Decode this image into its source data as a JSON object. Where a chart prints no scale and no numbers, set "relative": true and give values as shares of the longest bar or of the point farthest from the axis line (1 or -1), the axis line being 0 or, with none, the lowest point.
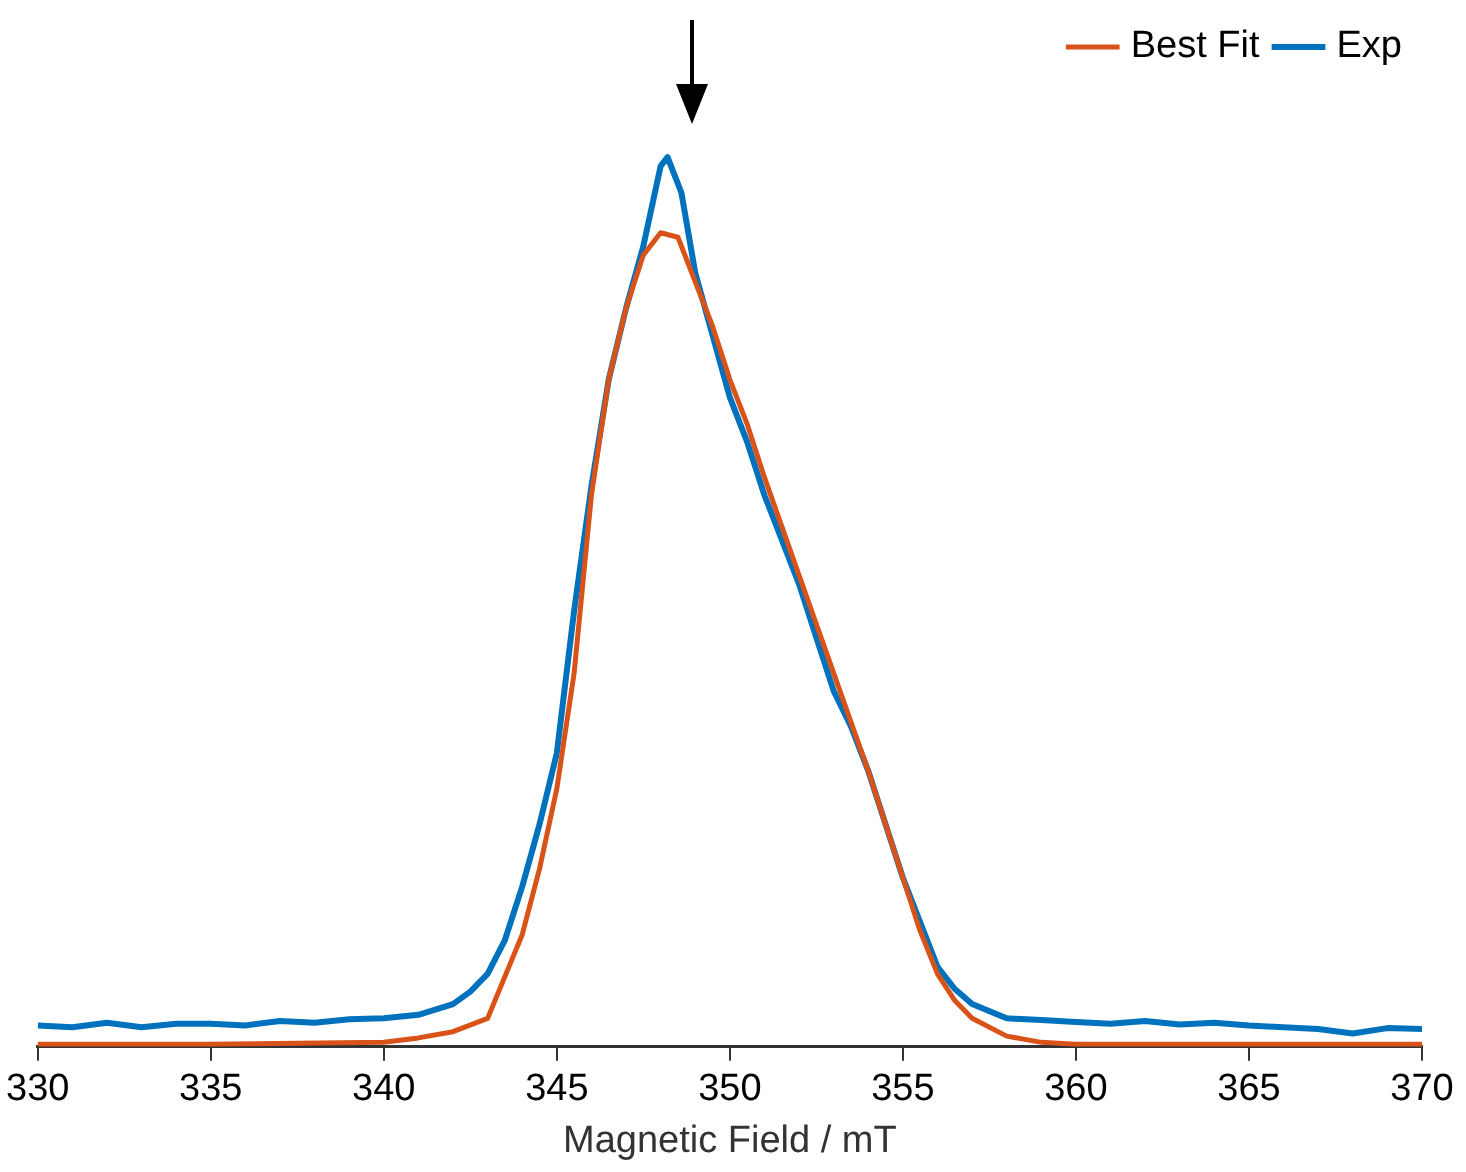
{
  "chart_data": {
    "type": "line",
    "xlabel": "Magnetic Field / mT",
    "relative": true,
    "xlim": [
      330,
      370
    ],
    "xticks": [
      330,
      335,
      340,
      345,
      350,
      355,
      360,
      365,
      370
    ],
    "grid": false,
    "legend": "top right",
    "marker": "none",
    "line_style": "solid",
    "series": [
      {
        "name": "Exp",
        "color": "#0072bd",
        "x": [
          330,
          331,
          332,
          333,
          334,
          335,
          336,
          337,
          338,
          339,
          340,
          341,
          342,
          342.5,
          343,
          343.5,
          344,
          344.5,
          345,
          345.5,
          346,
          346.5,
          347,
          347.5,
          348,
          348.2,
          348.6,
          349,
          349.5,
          350,
          350.5,
          351,
          351.5,
          352,
          352.5,
          353,
          353.5,
          354,
          354.5,
          355,
          355.5,
          356,
          356.5,
          357,
          358,
          359,
          360,
          361,
          362,
          363,
          364,
          365,
          366,
          367,
          368,
          369,
          370
        ],
        "values": [
          0.024,
          0.022,
          0.027,
          0.022,
          0.026,
          0.026,
          0.024,
          0.029,
          0.027,
          0.031,
          0.032,
          0.036,
          0.048,
          0.062,
          0.082,
          0.12,
          0.18,
          0.25,
          0.33,
          0.49,
          0.63,
          0.75,
          0.83,
          0.9,
          0.99,
          1,
          0.96,
          0.87,
          0.8,
          0.73,
          0.68,
          0.62,
          0.57,
          0.52,
          0.46,
          0.4,
          0.36,
          0.31,
          0.25,
          0.19,
          0.14,
          0.09,
          0.065,
          0.048,
          0.032,
          0.03,
          0.028,
          0.026,
          0.029,
          0.025,
          0.027,
          0.024,
          0.022,
          0.02,
          0.015,
          0.021,
          0.02
        ]
      },
      {
        "name": "Best Fit",
        "color": "#d95319",
        "x": [
          330,
          335,
          340,
          341,
          342,
          343,
          344,
          344.5,
          345,
          345.5,
          346,
          346.5,
          347,
          347.5,
          348,
          348.5,
          349,
          349.5,
          350,
          350.5,
          351,
          351.5,
          352,
          352.5,
          353,
          353.5,
          354,
          354.5,
          355,
          355.5,
          356,
          356.5,
          357,
          358,
          359,
          360,
          365,
          370
        ],
        "values": [
          0.003,
          0.003,
          0.005,
          0.01,
          0.017,
          0.032,
          0.126,
          0.2,
          0.29,
          0.42,
          0.62,
          0.75,
          0.83,
          0.89,
          0.915,
          0.91,
          0.86,
          0.81,
          0.75,
          0.7,
          0.64,
          0.585,
          0.53,
          0.475,
          0.42,
          0.365,
          0.31,
          0.25,
          0.19,
          0.13,
          0.082,
          0.052,
          0.032,
          0.012,
          0.005,
          0.003,
          0.003,
          0.003
        ]
      }
    ]
  }
}
